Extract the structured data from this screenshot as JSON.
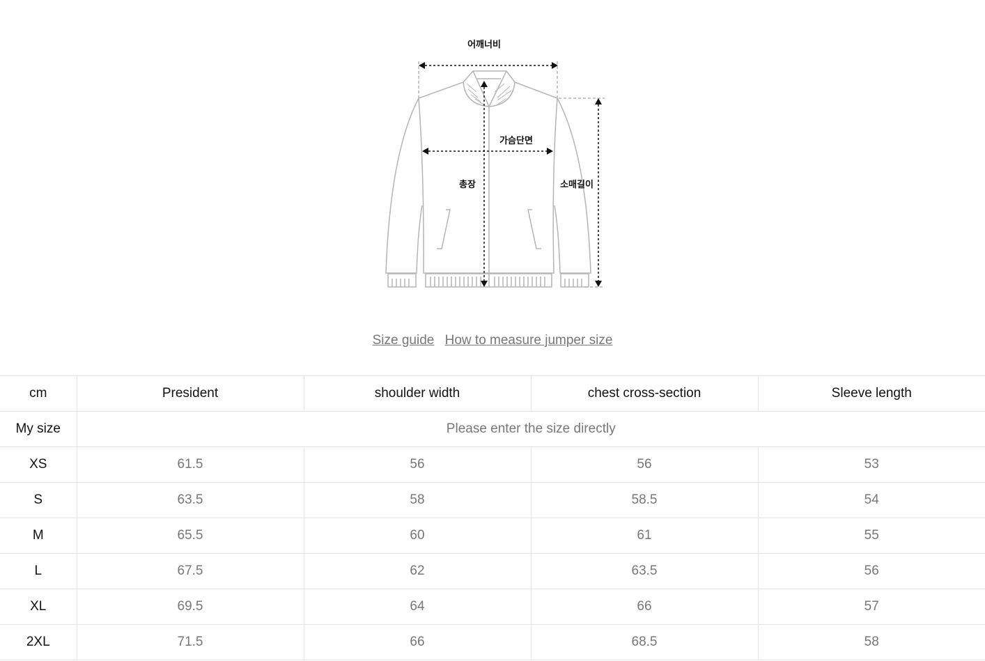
{
  "diagram": {
    "labels": {
      "shoulder": "어깨너비",
      "chest": "가슴단면",
      "length": "총장",
      "sleeve": "소매길이"
    },
    "line_color": "#b5b5b5"
  },
  "links": {
    "size_guide": "Size guide",
    "how_to": "How to measure jumper size"
  },
  "table": {
    "headers": [
      "cm",
      "President",
      "shoulder width",
      "chest cross-section",
      "Sleeve length"
    ],
    "my_size": {
      "label": "My size",
      "placeholder": "Please enter the size directly"
    },
    "rows": [
      [
        "XS",
        "61.5",
        "56",
        "56",
        "53"
      ],
      [
        "S",
        "63.5",
        "58",
        "58.5",
        "54"
      ],
      [
        "M",
        "65.5",
        "60",
        "61",
        "55"
      ],
      [
        "L",
        "67.5",
        "62",
        "63.5",
        "56"
      ],
      [
        "XL",
        "69.5",
        "64",
        "66",
        "57"
      ],
      [
        "2XL",
        "71.5",
        "66",
        "68.5",
        "58"
      ]
    ]
  }
}
